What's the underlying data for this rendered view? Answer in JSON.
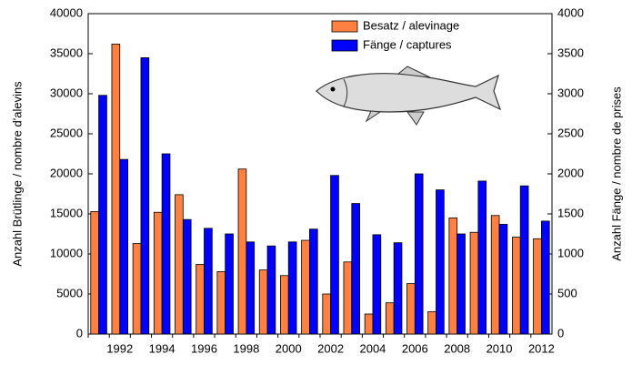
{
  "chart_data": {
    "type": "bar",
    "y_label": "Anzahl Brütlinge / nombre d'alevins",
    "y2_label": "Anzahl Fänge / nombre de prises",
    "categories": [
      null,
      "1992",
      null,
      "1994",
      null,
      "1996",
      null,
      "1998",
      null,
      "2000",
      null,
      "2002",
      null,
      "2004",
      null,
      "2006",
      null,
      "2008",
      null,
      "2010",
      null,
      "2012"
    ],
    "series": [
      {
        "name": "Besatz / alevinage",
        "color": "#ff8040",
        "axis": "y",
        "values": [
          15300,
          36200,
          11300,
          15200,
          17400,
          8700,
          7800,
          20600,
          8000,
          7300,
          11700,
          5000,
          9000,
          2500,
          3900,
          6300,
          2800,
          14500,
          12700,
          14800,
          12100,
          11900
        ]
      },
      {
        "name": "Fänge / captures",
        "color": "#0000ff",
        "axis": "y2",
        "values": [
          2980,
          2180,
          3450,
          2250,
          1430,
          1320,
          1250,
          1150,
          1100,
          1150,
          1310,
          1980,
          1630,
          1240,
          1140,
          2000,
          1800,
          1250,
          1910,
          1370,
          1850,
          1410
        ]
      }
    ],
    "ylim": [
      0,
      40000
    ],
    "yticks": [
      0,
      5000,
      10000,
      15000,
      20000,
      25000,
      30000,
      35000,
      40000
    ],
    "y2lim": [
      0,
      4000
    ],
    "y2ticks": [
      0,
      500,
      1000,
      1500,
      2000,
      2500,
      3000,
      3500,
      4000
    ],
    "grid": false,
    "legend": "top-right"
  }
}
